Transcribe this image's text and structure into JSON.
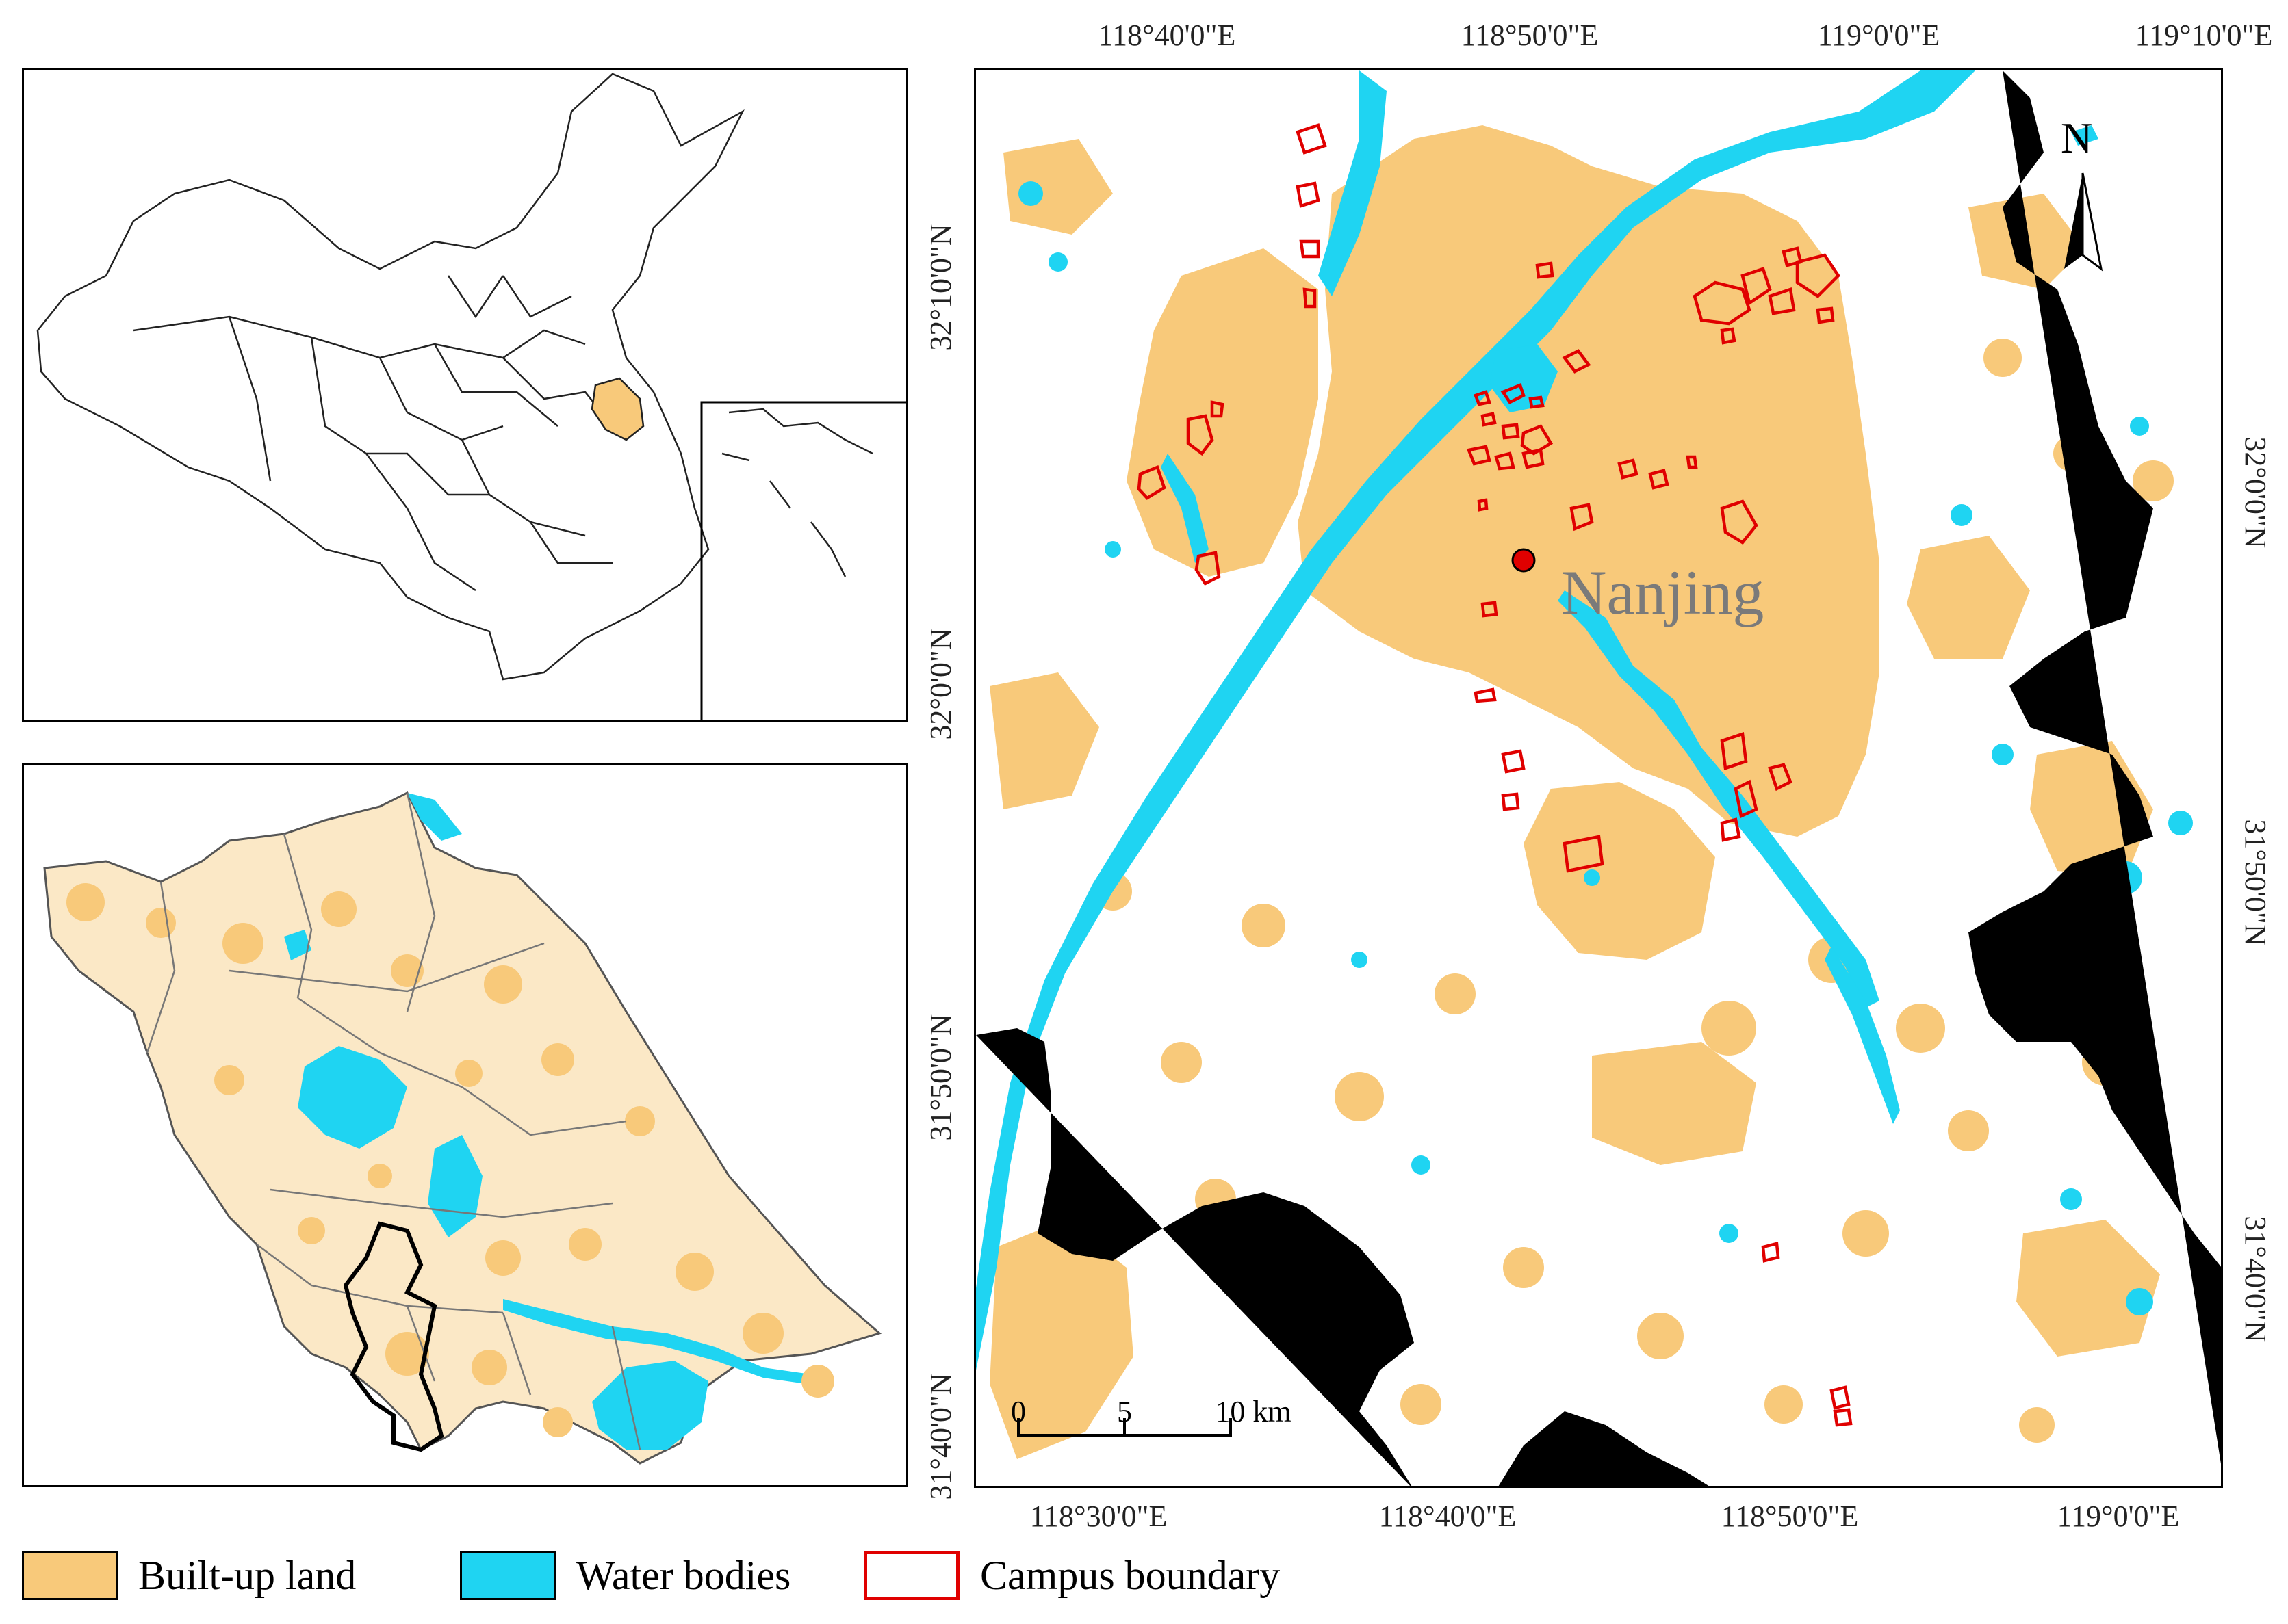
{
  "colors": {
    "built_up": "#f8c97a",
    "water": "#1fd4f2",
    "campus": "#e00000",
    "boundary": "#000000",
    "city_marker": "#e00000"
  },
  "main_map": {
    "city_label": "Nanjing",
    "north_label": "N",
    "coords_top": [
      "118°40'0\"E",
      "118°50'0\"E",
      "119°0'0\"E",
      "119°10'0\"E"
    ],
    "coords_bottom": [
      "118°30'0\"E",
      "118°40'0\"E",
      "118°50'0\"E",
      "119°0'0\"E"
    ],
    "coords_left": [
      "32°10'0\"N",
      "32°0'0\"N",
      "31°50'0\"N",
      "31°40'0\"N"
    ],
    "coords_right": [
      "32°0'0\"N",
      "31°50'0\"N",
      "31°40'0\"N"
    ],
    "scale_ticks": [
      "0",
      "5",
      "10 km"
    ]
  },
  "legend": [
    {
      "label": "Built-up land",
      "kind": "fill",
      "color": "#f8c97a"
    },
    {
      "label": "Water bodies",
      "kind": "fill",
      "color": "#1fd4f2"
    },
    {
      "label": "Campus boundary",
      "kind": "outline",
      "color": "#e00000"
    }
  ]
}
